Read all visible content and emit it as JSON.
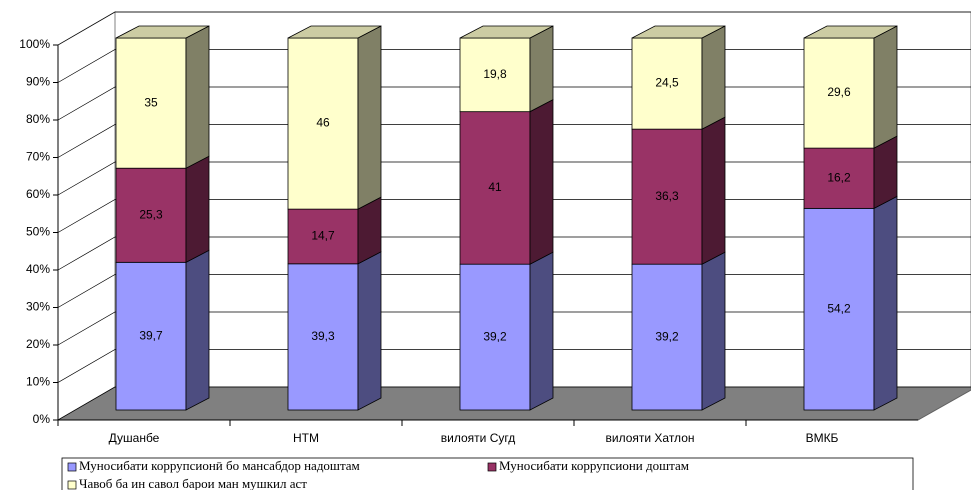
{
  "chart_data": {
    "type": "bar",
    "stacked": true,
    "categories": [
      "Душанбе",
      "НТМ",
      "вилояти Сугд",
      "вилояти Хатлон",
      "ВМКБ"
    ],
    "series": [
      {
        "name": "Муносибати коррупсионӣ бо мансабдор надоштам",
        "color": "#9999ff",
        "values": [
          39.7,
          39.3,
          39.2,
          39.2,
          54.2
        ],
        "value_labels": [
          "39,7",
          "39,3",
          "39,2",
          "39,2",
          "54,2"
        ]
      },
      {
        "name": "Муносибати коррупсиони доштам",
        "color": "#993366",
        "values": [
          25.3,
          14.7,
          41,
          36.3,
          16.2
        ],
        "value_labels": [
          "25,3",
          "14,7",
          "41",
          "36,3",
          "16,2"
        ]
      },
      {
        "name": "Чавоб ба ин савол барои ман мушкил аст",
        "color": "#ffffcc",
        "values": [
          35,
          46,
          19.8,
          24.5,
          29.6
        ],
        "value_labels": [
          "35",
          "46",
          "19,8",
          "24,5",
          "29,6"
        ]
      }
    ],
    "ylim": [
      0,
      100
    ],
    "yticks": [
      {
        "value": 0,
        "label": "0%"
      },
      {
        "value": 10,
        "label": "10%"
      },
      {
        "value": 20,
        "label": "20%"
      },
      {
        "value": 30,
        "label": "30%"
      },
      {
        "value": 40,
        "label": "40%"
      },
      {
        "value": 50,
        "label": "50%"
      },
      {
        "value": 60,
        "label": "60%"
      },
      {
        "value": 70,
        "label": "70%"
      },
      {
        "value": 80,
        "label": "80%"
      },
      {
        "value": 90,
        "label": "90%"
      },
      {
        "value": 100,
        "label": "100%"
      }
    ],
    "grid": true,
    "legend": "bottom"
  }
}
